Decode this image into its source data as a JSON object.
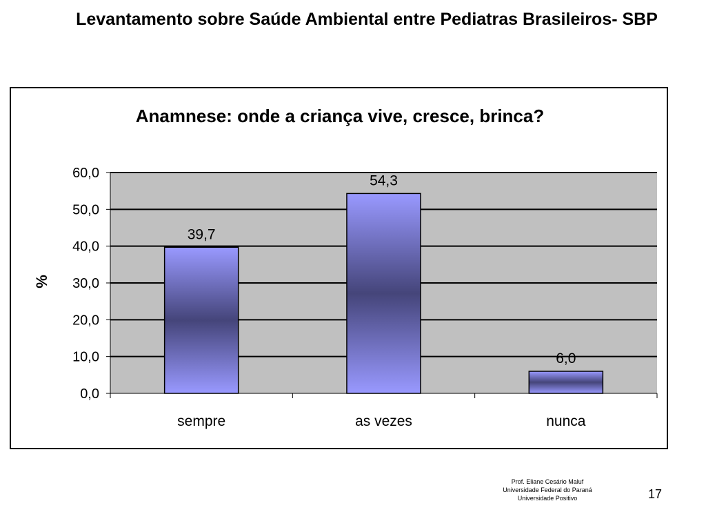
{
  "slide": {
    "title": "Levantamento sobre Saúde Ambiental entre Pediatras Brasileiros- SBP",
    "footer": {
      "lines": [
        "Prof. Eliane Cesário Maluf",
        "Universidade Federal do Paraná",
        "Universidade Positivo"
      ],
      "page_number": "17"
    }
  },
  "chart_data": {
    "type": "bar",
    "title": "Anamnese: onde a criança vive, cresce, brinca?",
    "xlabel": "",
    "ylabel": "%",
    "categories": [
      "sempre",
      "as vezes",
      "nunca"
    ],
    "values": [
      39.7,
      54.3,
      6.0
    ],
    "value_labels": [
      "39,7",
      "54,3",
      "6,0"
    ],
    "ylim": [
      0,
      60
    ],
    "yticks": [
      0,
      10,
      20,
      30,
      40,
      50,
      60
    ],
    "ytick_labels": [
      "0,0",
      "10,0",
      "20,0",
      "30,0",
      "40,0",
      "50,0",
      "60,0"
    ],
    "grid": true,
    "legend": "none",
    "colors": {
      "plot_background": "#c0c0c0",
      "bar_light": "#9999ff",
      "bar_dark": "#45457a",
      "gridline": "#000000"
    }
  }
}
